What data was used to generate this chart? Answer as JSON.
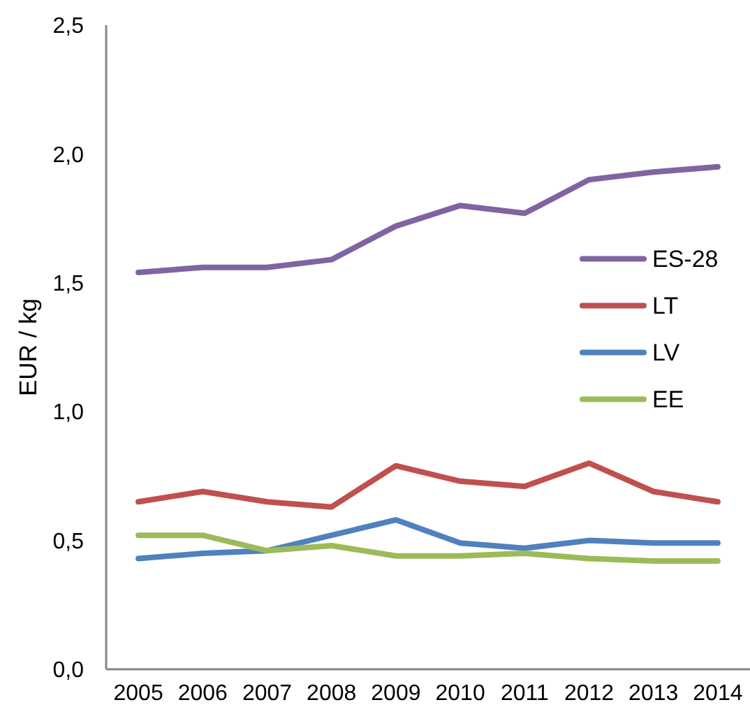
{
  "chart_data": {
    "type": "line",
    "ylabel": "EUR / kg",
    "categories": [
      "2005",
      "2006",
      "2007",
      "2008",
      "2009",
      "2010",
      "2011",
      "2012",
      "2013",
      "2014"
    ],
    "series": [
      {
        "name": "ES-28",
        "color": "#8064a2",
        "values": [
          1.54,
          1.56,
          1.56,
          1.59,
          1.72,
          1.8,
          1.77,
          1.9,
          1.93,
          1.95
        ]
      },
      {
        "name": "LT",
        "color": "#c0504d",
        "values": [
          0.65,
          0.69,
          0.65,
          0.63,
          0.79,
          0.73,
          0.71,
          0.8,
          0.69,
          0.65
        ]
      },
      {
        "name": "LV",
        "color": "#4f81bd",
        "values": [
          0.43,
          0.45,
          0.46,
          0.52,
          0.58,
          0.49,
          0.47,
          0.5,
          0.49,
          0.49
        ]
      },
      {
        "name": "EE",
        "color": "#9bbb59",
        "values": [
          0.52,
          0.52,
          0.46,
          0.48,
          0.44,
          0.44,
          0.45,
          0.43,
          0.42,
          0.42
        ]
      }
    ],
    "ylim": [
      0,
      2.5
    ],
    "yticks": [
      {
        "value": 0,
        "label": "0,0"
      },
      {
        "value": 0.5,
        "label": "0,5"
      },
      {
        "value": 1,
        "label": "1,0"
      },
      {
        "value": 1.5,
        "label": "1,5"
      },
      {
        "value": 2,
        "label": "2,0"
      },
      {
        "value": 2.5,
        "label": "2,5"
      }
    ],
    "grid": false,
    "legend": "right",
    "marker": "none",
    "line_style": "solid"
  }
}
